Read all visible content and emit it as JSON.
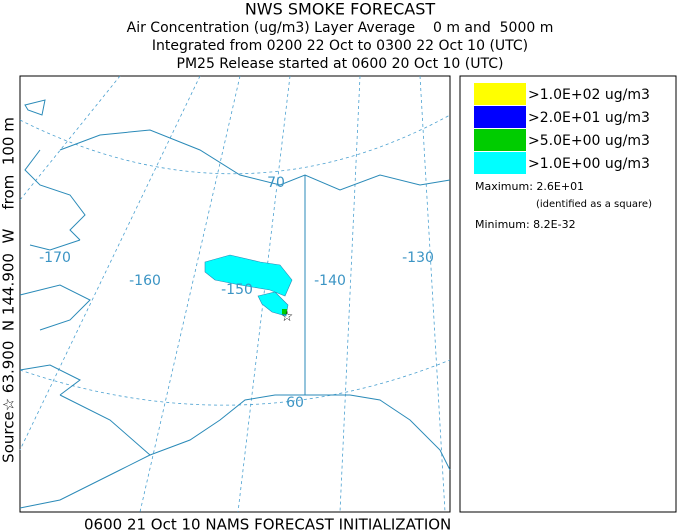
{
  "header": {
    "lines": [
      "NWS SMOKE FORECAST",
      "Air Concentration (ug/m3) Layer Average    0 m and  5000 m",
      "Integrated from 0200 22 Oct to 0300 22 Oct 10 (UTC)",
      "PM25 Release started at 0600 20 Oct 10 (UTC)"
    ]
  },
  "side_label": "Source☆ 63.900  N 144.900  W    from  100 m",
  "footer": "0600 21 Oct 10 NAMS FORECAST INITIALIZATION",
  "map": {
    "labels": [
      "-170",
      "-160",
      "-150",
      "-140",
      "-130",
      "70",
      "60"
    ]
  },
  "legend": {
    "entries": [
      {
        "label": ">1.0E+02 ug/m3",
        "color": "#ffff00"
      },
      {
        "label": ">2.0E+01 ug/m3",
        "color": "#0000ff"
      },
      {
        "label": ">5.0E+00 ug/m3",
        "color": "#00cc00"
      },
      {
        "label": ">1.0E+00 ug/m3",
        "color": "#00ffff"
      }
    ],
    "maximum": "Maximum: 2.6E+01",
    "note": "(identified as a square)",
    "minimum": "Minimum: 8.2E-32"
  }
}
